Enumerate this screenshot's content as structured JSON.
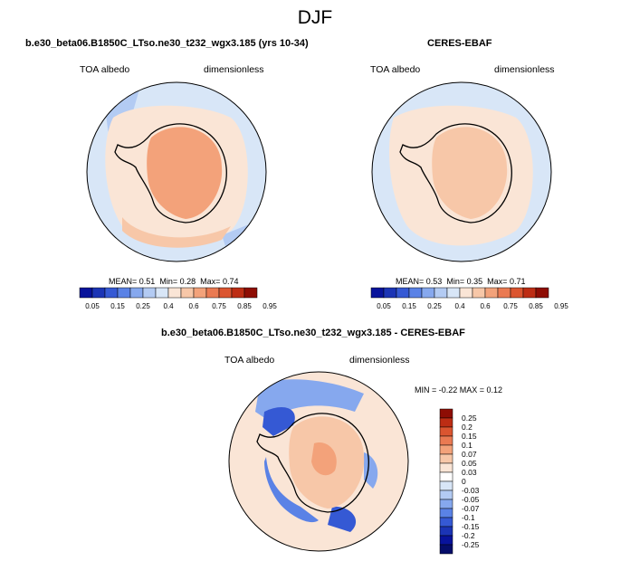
{
  "figure": {
    "title": "DJF"
  },
  "panels": {
    "model": {
      "title": "b.e30_beta06.B1850C_LTso.ne30_t232_wgx3.185 (yrs 10-34)",
      "left_label": "TOA albedo",
      "right_label": "dimensionless",
      "mean_label": "MEAN=",
      "mean": "0.51",
      "min_label": "Min=",
      "min": "0.28",
      "max_label": "Max=",
      "max": "0.74"
    },
    "obs": {
      "title": "CERES-EBAF",
      "left_label": "TOA albedo",
      "right_label": "dimensionless",
      "mean_label": "MEAN=",
      "mean": "0.53",
      "min_label": "Min=",
      "min": "0.35",
      "max_label": "Max=",
      "max": "0.71"
    },
    "diff": {
      "title": "b.e30_beta06.B1850C_LTso.ne30_t232_wgx3.185 - CERES-EBAF",
      "left_label": "TOA albedo",
      "right_label": "dimensionless",
      "minmax_text": "MIN = -0.22 MAX = 0.12"
    }
  },
  "colorbar_abs": {
    "ticks": [
      "0.05",
      "0.15",
      "0.25",
      "0.4",
      "0.6",
      "0.75",
      "0.85",
      "0.95"
    ],
    "colors": [
      "#08139b",
      "#1b34b5",
      "#3559d4",
      "#5a82e6",
      "#86a8ee",
      "#b3cbf3",
      "#d8e6f7",
      "#fae5d6",
      "#f7c7a8",
      "#f3a27a",
      "#ea7a52",
      "#db5530",
      "#bd2d14",
      "#8e0d04"
    ]
  },
  "colorbar_diff": {
    "ticks": [
      "0.25",
      "0.2",
      "0.15",
      "0.1",
      "0.07",
      "0.05",
      "0.03",
      "0",
      "-0.03",
      "-0.05",
      "-0.07",
      "-0.1",
      "-0.15",
      "-0.2",
      "-0.25"
    ],
    "colors": [
      "#8e0d04",
      "#bd2d14",
      "#db5530",
      "#ea7a52",
      "#f3a27a",
      "#f7c7a8",
      "#fae5d6",
      "#ffffff",
      "#d8e6f7",
      "#b3cbf3",
      "#86a8ee",
      "#5a82e6",
      "#3559d4",
      "#1b34b5",
      "#08139b",
      "#050d6a"
    ]
  },
  "chart_data": [
    {
      "type": "heatmap",
      "title": "b.e30_beta06.B1850C_LTso.ne30_t232_wgx3.185 (yrs 10-34)",
      "variable": "TOA albedo",
      "units": "dimensionless",
      "projection": "south polar stereographic",
      "mean": 0.51,
      "min": 0.28,
      "max": 0.74,
      "contour_levels": [
        0.05,
        0.1,
        0.15,
        0.2,
        0.25,
        0.3,
        0.4,
        0.5,
        0.6,
        0.7,
        0.75,
        0.8,
        0.85,
        0.9,
        0.95
      ]
    },
    {
      "type": "heatmap",
      "title": "CERES-EBAF",
      "variable": "TOA albedo",
      "units": "dimensionless",
      "projection": "south polar stereographic",
      "mean": 0.53,
      "min": 0.35,
      "max": 0.71,
      "contour_levels": [
        0.05,
        0.1,
        0.15,
        0.2,
        0.25,
        0.3,
        0.4,
        0.5,
        0.6,
        0.7,
        0.75,
        0.8,
        0.85,
        0.9,
        0.95
      ]
    },
    {
      "type": "heatmap",
      "title": "b.e30_beta06.B1850C_LTso.ne30_t232_wgx3.185 - CERES-EBAF",
      "variable": "TOA albedo",
      "units": "dimensionless",
      "projection": "south polar stereographic",
      "min": -0.22,
      "max": 0.12,
      "contour_levels": [
        -0.25,
        -0.2,
        -0.15,
        -0.1,
        -0.07,
        -0.05,
        -0.03,
        0,
        0.03,
        0.05,
        0.07,
        0.1,
        0.15,
        0.2,
        0.25
      ]
    }
  ]
}
